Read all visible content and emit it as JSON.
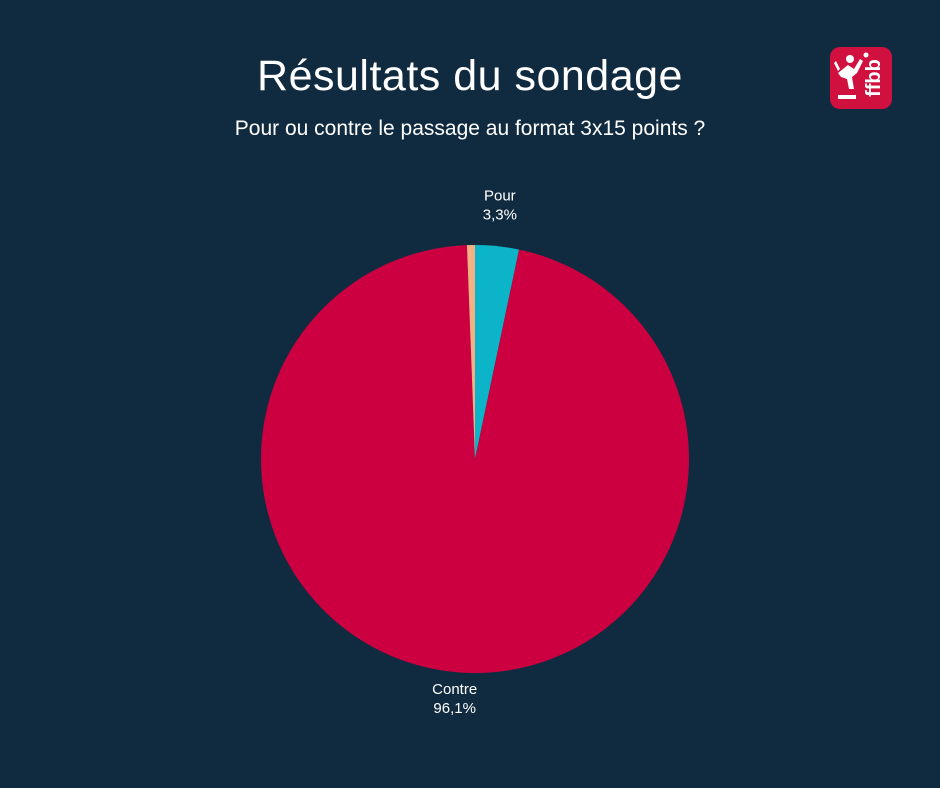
{
  "title": "Résultats du sondage",
  "subtitle": "Pour ou contre le passage au format 3x15 points ?",
  "logo": {
    "text": "ffbb"
  },
  "colors": {
    "background": "#102b40"
  },
  "chart_data": {
    "type": "pie",
    "slices": [
      {
        "label": "Pour",
        "value": 3.3,
        "display": "3,3%",
        "color": "#0bb4c8",
        "show_label": true
      },
      {
        "label": "Contre",
        "value": 96.1,
        "display": "96,1%",
        "color": "#cc0040",
        "show_label": true
      },
      {
        "label": "",
        "value": 0.6,
        "display": "",
        "color": "#f4b183",
        "show_label": false
      }
    ],
    "start_angle_deg": 0,
    "direction": "clockwise"
  }
}
